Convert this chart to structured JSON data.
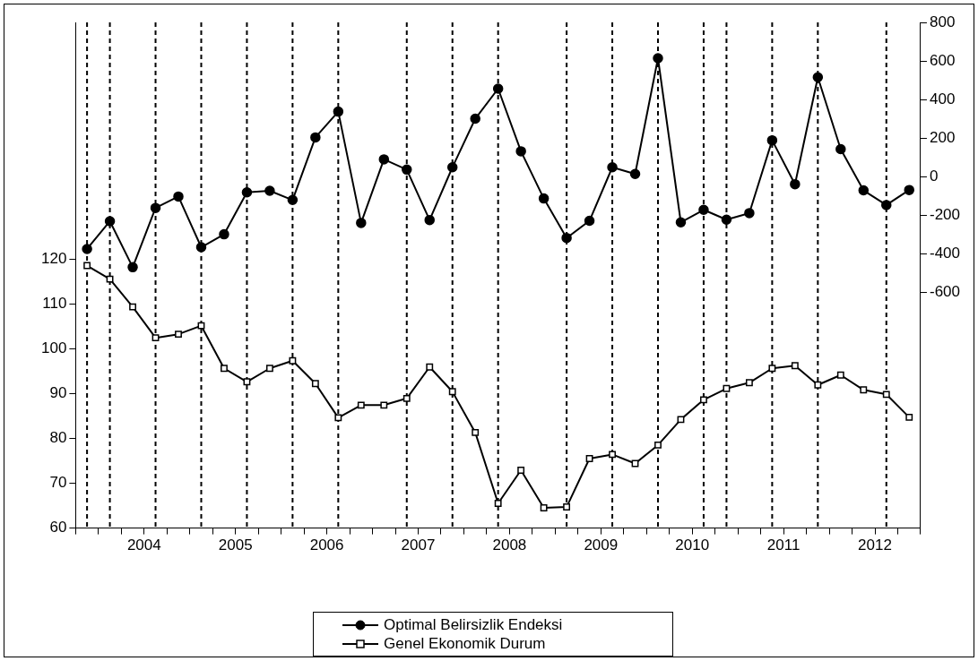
{
  "chart_data": {
    "type": "line",
    "x": [
      2003.875,
      2004.125,
      2004.375,
      2004.625,
      2004.875,
      2005.125,
      2005.375,
      2005.625,
      2005.875,
      2006.125,
      2006.375,
      2006.625,
      2006.875,
      2007.125,
      2007.375,
      2007.625,
      2007.875,
      2008.125,
      2008.375,
      2008.625,
      2008.875,
      2009.125,
      2009.375,
      2009.625,
      2009.875,
      2010.125,
      2010.375,
      2010.625,
      2010.875,
      2011.125,
      2011.375,
      2011.625,
      2011.875,
      2012.125,
      2012.375,
      2012.625,
      2012.875
    ],
    "series": [
      {
        "name": "Optimal Belirsizlik Endeksi",
        "color": "#000000",
        "axis": "y2",
        "marker": "circle",
        "values": [
          -376,
          -232,
          -471,
          -163,
          -104,
          -367,
          -300,
          -82,
          -74,
          -122,
          203,
          337,
          -241,
          89,
          36,
          -226,
          48,
          300,
          456,
          131,
          -114,
          -319,
          -230,
          48,
          13,
          614,
          -238,
          -173,
          -224,
          -190,
          188,
          -40,
          515,
          142,
          -72,
          -148,
          -70
        ]
      },
      {
        "name": "Genel Ekonomik Durum",
        "color": "#000000",
        "marker": "square",
        "values": [
          118.5,
          115.5,
          109.3,
          102.4,
          103.2,
          105.1,
          95.6,
          92.6,
          95.6,
          97.3,
          92.2,
          84.6,
          87.4,
          87.4,
          88.9,
          95.9,
          90.4,
          81.3,
          65.5,
          72.9,
          64.5,
          64.7,
          75.5,
          76.4,
          74.4,
          78.5,
          84.2,
          88.6,
          91.1,
          92.4,
          95.6,
          96.2,
          91.9,
          94.1,
          90.8,
          89.8,
          84.7
        ]
      }
    ],
    "xlim": [
      2003.75,
      2013
    ],
    "xticks": [
      {
        "value": 2003.75,
        "label": null
      },
      {
        "value": 2004,
        "label": null
      },
      {
        "value": 2004.25,
        "label": null
      },
      {
        "value": 2004.5,
        "label": "2004"
      },
      {
        "value": 2004.75,
        "label": null
      },
      {
        "value": 2005,
        "label": null
      },
      {
        "value": 2005.25,
        "label": null
      },
      {
        "value": 2005.5,
        "label": "2005"
      },
      {
        "value": 2005.75,
        "label": null
      },
      {
        "value": 2006,
        "label": null
      },
      {
        "value": 2006.25,
        "label": null
      },
      {
        "value": 2006.5,
        "label": "2006"
      },
      {
        "value": 2006.75,
        "label": null
      },
      {
        "value": 2007,
        "label": null
      },
      {
        "value": 2007.25,
        "label": null
      },
      {
        "value": 2007.5,
        "label": "2007"
      },
      {
        "value": 2007.75,
        "label": null
      },
      {
        "value": 2008,
        "label": null
      },
      {
        "value": 2008.25,
        "label": null
      },
      {
        "value": 2008.5,
        "label": "2008"
      },
      {
        "value": 2008.75,
        "label": null
      },
      {
        "value": 2009,
        "label": null
      },
      {
        "value": 2009.25,
        "label": null
      },
      {
        "value": 2009.5,
        "label": "2009"
      },
      {
        "value": 2009.75,
        "label": null
      },
      {
        "value": 2010,
        "label": null
      },
      {
        "value": 2010.25,
        "label": null
      },
      {
        "value": 2010.5,
        "label": "2010"
      },
      {
        "value": 2010.75,
        "label": null
      },
      {
        "value": 2011,
        "label": null
      },
      {
        "value": 2011.25,
        "label": null
      },
      {
        "value": 2011.5,
        "label": "2011"
      },
      {
        "value": 2011.75,
        "label": null
      },
      {
        "value": 2012,
        "label": null
      },
      {
        "value": 2012.25,
        "label": null
      },
      {
        "value": 2012.5,
        "label": "2012"
      },
      {
        "value": 2012.75,
        "label": null
      },
      {
        "value": 2013,
        "label": null
      }
    ],
    "ylim": [
      60,
      172.7
    ],
    "yticks": [
      60,
      70,
      80,
      90,
      100,
      110,
      120
    ],
    "y2lim": [
      -1825,
      800
    ],
    "y2ticks": [
      -600,
      -400,
      -200,
      0,
      200,
      400,
      600,
      800
    ],
    "ref_lines": [
      {
        "axis": "x",
        "value": 2003.875,
        "line_style": "dashed"
      },
      {
        "axis": "x",
        "value": 2004.125,
        "line_style": "dashed"
      },
      {
        "axis": "x",
        "value": 2004.625,
        "line_style": "dashed"
      },
      {
        "axis": "x",
        "value": 2005.125,
        "line_style": "dashed"
      },
      {
        "axis": "x",
        "value": 2005.625,
        "line_style": "dashed"
      },
      {
        "axis": "x",
        "value": 2006.125,
        "line_style": "dashed"
      },
      {
        "axis": "x",
        "value": 2006.625,
        "line_style": "dashed"
      },
      {
        "axis": "x",
        "value": 2007.375,
        "line_style": "dashed"
      },
      {
        "axis": "x",
        "value": 2007.875,
        "line_style": "dashed"
      },
      {
        "axis": "x",
        "value": 2008.375,
        "line_style": "dashed"
      },
      {
        "axis": "x",
        "value": 2009.125,
        "line_style": "dashed"
      },
      {
        "axis": "x",
        "value": 2009.625,
        "line_style": "dashed"
      },
      {
        "axis": "x",
        "value": 2010.125,
        "line_style": "dashed"
      },
      {
        "axis": "x",
        "value": 2010.625,
        "line_style": "dashed"
      },
      {
        "axis": "x",
        "value": 2010.875,
        "line_style": "dashed"
      },
      {
        "axis": "x",
        "value": 2011.375,
        "line_style": "dashed"
      },
      {
        "axis": "x",
        "value": 2011.875,
        "line_style": "dashed"
      },
      {
        "axis": "x",
        "value": 2012.625,
        "line_style": "dashed"
      }
    ],
    "grid": false,
    "legend": "bottom",
    "line_style": "solid"
  }
}
